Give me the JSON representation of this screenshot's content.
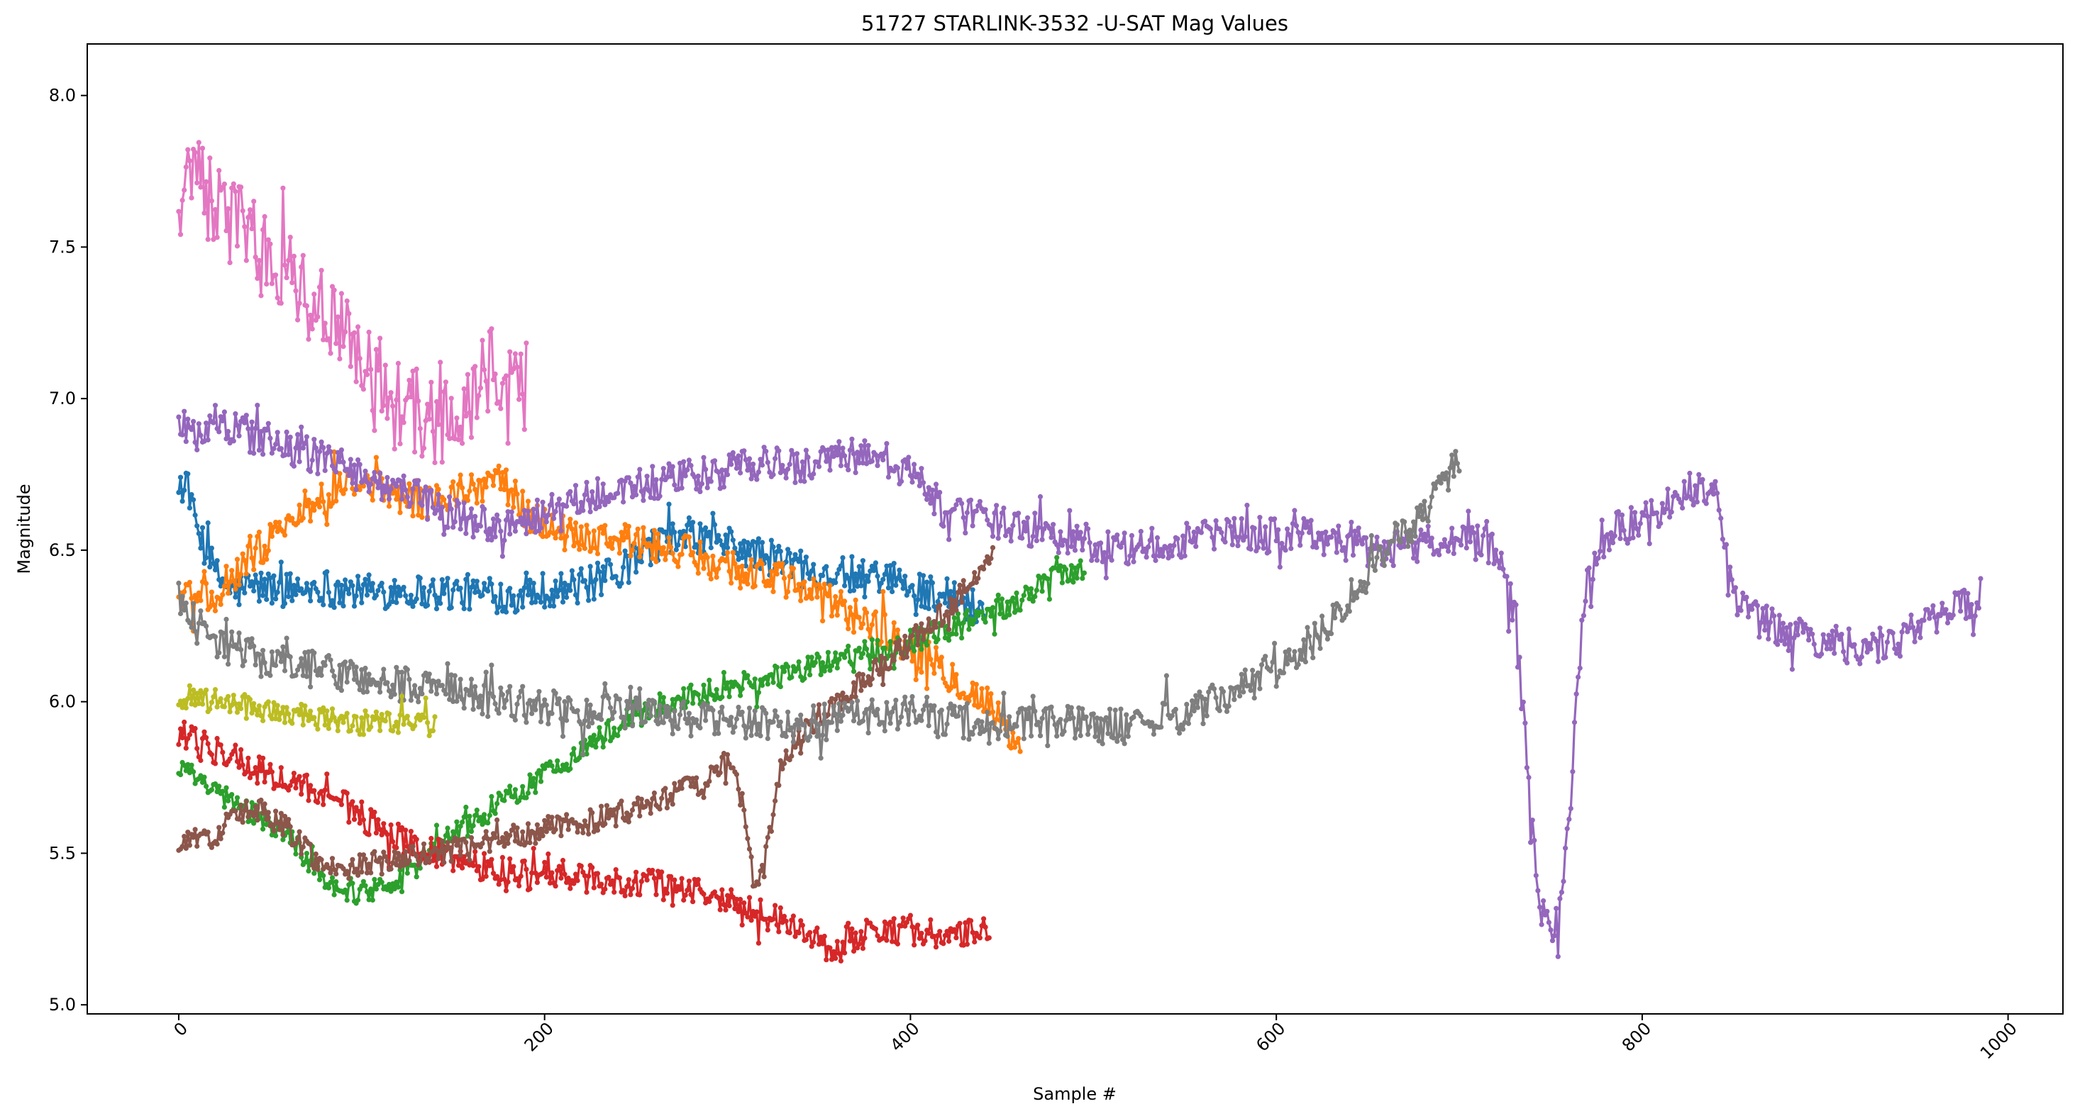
{
  "chart_data": {
    "type": "line",
    "title": "51727 STARLINK-3532 -U-SAT Mag Values",
    "xlabel": "Sample #",
    "ylabel": "Magnitude",
    "xlim": [
      -50,
      1030
    ],
    "ylim": [
      4.97,
      8.17
    ],
    "xticks": [
      0,
      200,
      400,
      600,
      800,
      1000
    ],
    "yticks": [
      5.0,
      5.5,
      6.0,
      6.5,
      7.0,
      7.5,
      8.0
    ],
    "grid": false,
    "legend": "none",
    "series": [
      {
        "color": "#1f77b4",
        "x": [
          0,
          10,
          20,
          30,
          40,
          60,
          80,
          100,
          120,
          140,
          160,
          180,
          200,
          220,
          240,
          260,
          280,
          300,
          320,
          340,
          360,
          380,
          400,
          420,
          440
        ],
        "y": [
          6.74,
          6.58,
          6.42,
          6.36,
          6.38,
          6.37,
          6.38,
          6.36,
          6.37,
          6.36,
          6.36,
          6.35,
          6.37,
          6.38,
          6.42,
          6.52,
          6.55,
          6.52,
          6.48,
          6.45,
          6.42,
          6.4,
          6.38,
          6.35,
          6.3
        ],
        "noise": 0.06
      },
      {
        "color": "#ff7f0e",
        "x": [
          0,
          10,
          20,
          40,
          60,
          80,
          100,
          120,
          140,
          160,
          175,
          190,
          210,
          240,
          270,
          300,
          330,
          360,
          380,
          400,
          420,
          440,
          460
        ],
        "y": [
          6.38,
          6.34,
          6.36,
          6.48,
          6.6,
          6.68,
          6.72,
          6.68,
          6.66,
          6.7,
          6.75,
          6.62,
          6.56,
          6.54,
          6.5,
          6.45,
          6.4,
          6.32,
          6.25,
          6.18,
          6.1,
          6.0,
          5.85
        ],
        "noise": 0.06
      },
      {
        "color": "#2ca02c",
        "x": [
          0,
          20,
          40,
          60,
          80,
          100,
          120,
          140,
          160,
          180,
          200,
          220,
          240,
          260,
          280,
          300,
          320,
          340,
          360,
          380,
          400,
          420,
          440,
          460,
          480,
          495
        ],
        "y": [
          5.78,
          5.7,
          5.63,
          5.56,
          5.4,
          5.37,
          5.42,
          5.52,
          5.6,
          5.68,
          5.76,
          5.84,
          5.92,
          5.98,
          6.02,
          6.05,
          6.07,
          6.1,
          6.14,
          6.17,
          6.2,
          6.24,
          6.28,
          6.34,
          6.42,
          6.44
        ],
        "noise": 0.04
      },
      {
        "color": "#d62728",
        "x": [
          0,
          20,
          40,
          60,
          80,
          100,
          120,
          140,
          160,
          180,
          200,
          220,
          240,
          260,
          280,
          300,
          320,
          340,
          360,
          380,
          400,
          420,
          443
        ],
        "y": [
          5.9,
          5.84,
          5.78,
          5.74,
          5.7,
          5.62,
          5.55,
          5.5,
          5.47,
          5.44,
          5.42,
          5.41,
          5.4,
          5.4,
          5.38,
          5.34,
          5.3,
          5.24,
          5.18,
          5.25,
          5.25,
          5.22,
          5.24
        ],
        "noise": 0.05
      },
      {
        "color": "#9467bd",
        "x": [
          0,
          20,
          40,
          60,
          80,
          100,
          120,
          140,
          160,
          180,
          200,
          220,
          240,
          260,
          280,
          300,
          320,
          340,
          360,
          380,
          400,
          420,
          440,
          460,
          480,
          500,
          520,
          540,
          560,
          580,
          600,
          620,
          640,
          660,
          680,
          700,
          720,
          730,
          736,
          740,
          745,
          750,
          755,
          760,
          765,
          770,
          780,
          800,
          820,
          840,
          850,
          860,
          880,
          900,
          920,
          940,
          960,
          985
        ],
        "y": [
          6.9,
          6.92,
          6.88,
          6.84,
          6.8,
          6.75,
          6.7,
          6.65,
          6.6,
          6.58,
          6.62,
          6.66,
          6.7,
          6.72,
          6.74,
          6.76,
          6.78,
          6.78,
          6.8,
          6.82,
          6.75,
          6.62,
          6.6,
          6.58,
          6.55,
          6.52,
          6.5,
          6.52,
          6.55,
          6.55,
          6.55,
          6.55,
          6.52,
          6.5,
          6.52,
          6.55,
          6.5,
          6.3,
          5.9,
          5.55,
          5.3,
          5.22,
          5.3,
          5.6,
          6.1,
          6.4,
          6.55,
          6.6,
          6.68,
          6.72,
          6.35,
          6.28,
          6.22,
          6.2,
          6.18,
          6.2,
          6.28,
          6.35
        ],
        "noise": 0.06
      },
      {
        "color": "#8c564b",
        "x": [
          0,
          20,
          40,
          60,
          80,
          100,
          120,
          140,
          160,
          180,
          200,
          220,
          240,
          260,
          280,
          290,
          300,
          305,
          310,
          315,
          320,
          325,
          330,
          340,
          360,
          380,
          400,
          420,
          430,
          445
        ],
        "y": [
          5.52,
          5.56,
          5.66,
          5.58,
          5.45,
          5.46,
          5.48,
          5.5,
          5.52,
          5.55,
          5.58,
          5.6,
          5.63,
          5.66,
          5.72,
          5.75,
          5.8,
          5.75,
          5.6,
          5.35,
          5.45,
          5.65,
          5.8,
          5.9,
          6.0,
          6.1,
          6.2,
          6.3,
          6.38,
          6.48
        ],
        "noise": 0.04
      },
      {
        "color": "#e377c2",
        "x": [
          0,
          5,
          10,
          20,
          30,
          40,
          50,
          60,
          70,
          80,
          90,
          100,
          110,
          120,
          130,
          140,
          150,
          160,
          170,
          180,
          190
        ],
        "y": [
          7.55,
          7.8,
          7.75,
          7.62,
          7.58,
          7.55,
          7.5,
          7.42,
          7.35,
          7.28,
          7.2,
          7.15,
          7.08,
          7.0,
          6.95,
          6.9,
          6.95,
          7.0,
          7.1,
          7.0,
          7.05
        ],
        "noise": 0.15
      },
      {
        "color": "#7f7f7f",
        "x": [
          0,
          10,
          20,
          40,
          60,
          80,
          100,
          120,
          140,
          160,
          180,
          200,
          220,
          240,
          260,
          280,
          300,
          320,
          340,
          360,
          380,
          400,
          420,
          440,
          460,
          480,
          500,
          520,
          540,
          560,
          580,
          600,
          620,
          640,
          660,
          680,
          690,
          700
        ],
        "y": [
          6.38,
          6.25,
          6.2,
          6.15,
          6.12,
          6.1,
          6.08,
          6.06,
          6.04,
          6.02,
          6.0,
          5.98,
          5.97,
          5.96,
          5.95,
          5.94,
          5.93,
          5.92,
          5.92,
          5.94,
          5.96,
          5.96,
          5.94,
          5.92,
          5.92,
          5.93,
          5.92,
          5.92,
          5.94,
          5.98,
          6.04,
          6.1,
          6.2,
          6.35,
          6.5,
          6.62,
          6.72,
          6.8
        ],
        "noise": 0.06
      },
      {
        "color": "#bcbd22",
        "x": [
          0,
          20,
          40,
          60,
          80,
          100,
          120,
          140
        ],
        "y": [
          6.02,
          6.0,
          5.98,
          5.96,
          5.94,
          5.93,
          5.93,
          5.92
        ],
        "noise": 0.04
      }
    ]
  }
}
